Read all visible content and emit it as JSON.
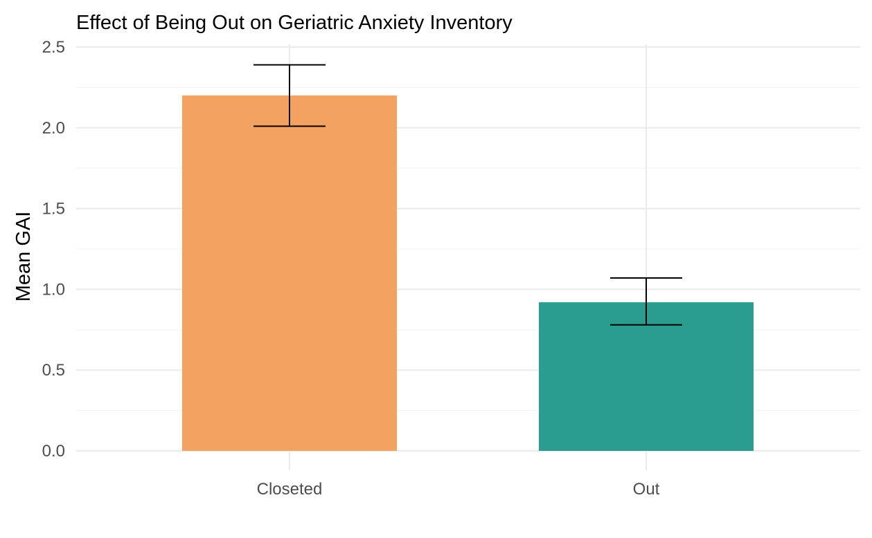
{
  "chart_data": {
    "type": "bar",
    "title": "Effect of Being Out on Geriatric Anxiety Inventory",
    "xlabel": "",
    "ylabel": "Mean GAI",
    "categories": [
      "Closeted",
      "Out"
    ],
    "values": [
      2.2,
      0.92
    ],
    "error_lower": [
      2.01,
      0.78
    ],
    "error_upper": [
      2.39,
      1.07
    ],
    "colors": [
      "#F4A261",
      "#2A9D8F"
    ],
    "ylim": [
      0,
      2.5
    ],
    "yticks": [
      "0.0",
      "0.5",
      "1.0",
      "1.5",
      "2.0",
      "2.5"
    ],
    "grid": true,
    "legend": "none"
  }
}
